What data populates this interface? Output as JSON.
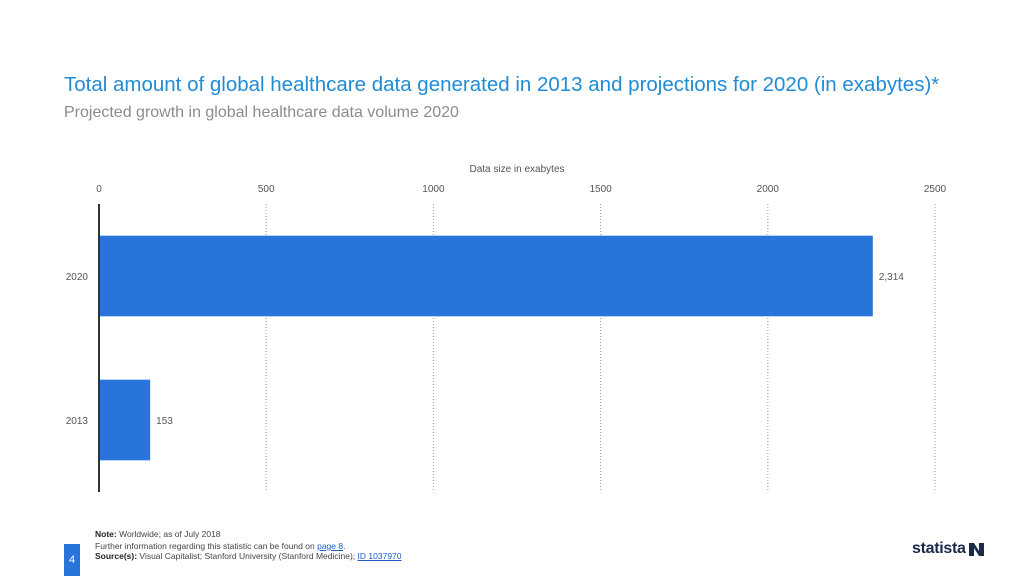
{
  "header": {
    "title": "Total amount of global healthcare data generated in 2013 and projections for 2020 (in exabytes)*",
    "subtitle": "Projected growth in global healthcare data volume 2020"
  },
  "chart_data": {
    "type": "bar",
    "orientation": "horizontal",
    "categories": [
      "2020",
      "2013"
    ],
    "values": [
      2314,
      153
    ],
    "value_labels": [
      "2,314",
      "153"
    ],
    "xlabel": "Data size in exabytes",
    "xlim": [
      0,
      2500
    ],
    "xticks": [
      0,
      500,
      1000,
      1500,
      2000,
      2500
    ],
    "grid": true,
    "bar_color": "#2874d9"
  },
  "footer": {
    "note_label": "Note:",
    "note_text": "Worldwide; as of July 2018",
    "further_info_text": "Further information regarding this statistic can be found on",
    "further_info_link": "page 8",
    "source_label": "Source(s):",
    "source_text": "Visual Capitalist; Stanford University (Stanford Medicine);",
    "source_link": "ID 1037970",
    "page_number": "4"
  },
  "brand": {
    "name": "statista"
  },
  "colors": {
    "title": "#1f8cd6",
    "accent": "#2874d9"
  }
}
